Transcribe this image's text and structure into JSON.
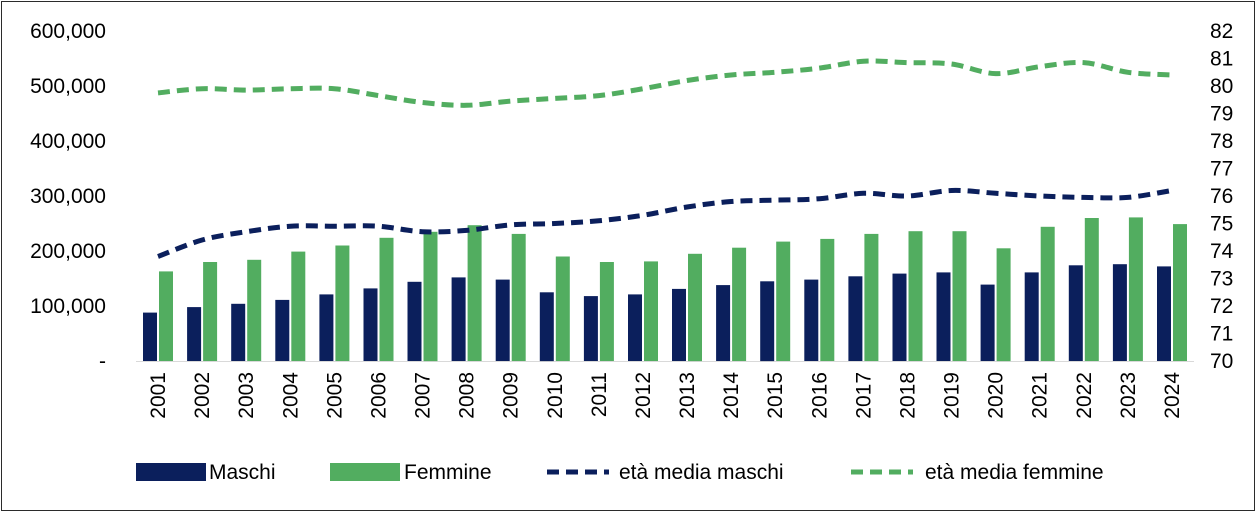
{
  "chart_data": {
    "type": "bar",
    "title": "",
    "xlabel": "",
    "ylabel": "",
    "categories": [
      "2001",
      "2002",
      "2003",
      "2004",
      "2005",
      "2006",
      "2007",
      "2008",
      "2009",
      "2010",
      "2011",
      "2012",
      "2013",
      "2014",
      "2015",
      "2016",
      "2017",
      "2018",
      "2019",
      "2020",
      "2021",
      "2022",
      "2023",
      "2024"
    ],
    "series": [
      {
        "name": "Maschi",
        "type": "bar",
        "axis": "left",
        "color": "#0b1f5c",
        "values": [
          88000,
          98000,
          104000,
          111000,
          121000,
          132000,
          144000,
          152000,
          148000,
          125000,
          118000,
          121000,
          131000,
          138000,
          145000,
          148000,
          154000,
          159000,
          161000,
          139000,
          161000,
          174000,
          176000,
          172000
        ]
      },
      {
        "name": "Femmine",
        "type": "bar",
        "axis": "left",
        "color": "#52ad60",
        "values": [
          163000,
          180000,
          184000,
          199000,
          210000,
          224000,
          235000,
          247000,
          231000,
          190000,
          180000,
          181000,
          195000,
          206000,
          217000,
          222000,
          231000,
          236000,
          236000,
          205000,
          244000,
          260000,
          261000,
          249000
        ]
      },
      {
        "name": "età media maschi",
        "type": "line",
        "dashed": true,
        "axis": "right",
        "color": "#0b1f5c",
        "values": [
          73.8,
          74.4,
          74.7,
          74.9,
          74.9,
          74.9,
          74.7,
          74.75,
          74.95,
          75.0,
          75.1,
          75.3,
          75.6,
          75.8,
          75.85,
          75.9,
          76.1,
          76.0,
          76.2,
          76.1,
          76.0,
          75.95,
          75.95,
          76.2
        ]
      },
      {
        "name": "età media femmine",
        "type": "line",
        "dashed": true,
        "axis": "right",
        "color": "#52ad60",
        "values": [
          79.75,
          79.9,
          79.85,
          79.9,
          79.9,
          79.65,
          79.4,
          79.3,
          79.45,
          79.55,
          79.65,
          79.9,
          80.2,
          80.4,
          80.5,
          80.65,
          80.9,
          80.85,
          80.8,
          80.45,
          80.7,
          80.85,
          80.5,
          80.4
        ]
      }
    ],
    "y_left": {
      "ylim": [
        0,
        600000
      ],
      "tick_labels": [
        "-",
        "100,000",
        "200,000",
        "300,000",
        "400,000",
        "500,000",
        "600,000"
      ]
    },
    "y_right": {
      "ylim": [
        70,
        82
      ],
      "tick_labels": [
        "70",
        "71",
        "72",
        "73",
        "74",
        "75",
        "76",
        "77",
        "78",
        "79",
        "80",
        "81",
        "82"
      ]
    },
    "grid": false,
    "legend": {
      "position": "bottom",
      "items": [
        "Maschi",
        "Femmine",
        "età media maschi",
        "età media femmine"
      ]
    }
  }
}
